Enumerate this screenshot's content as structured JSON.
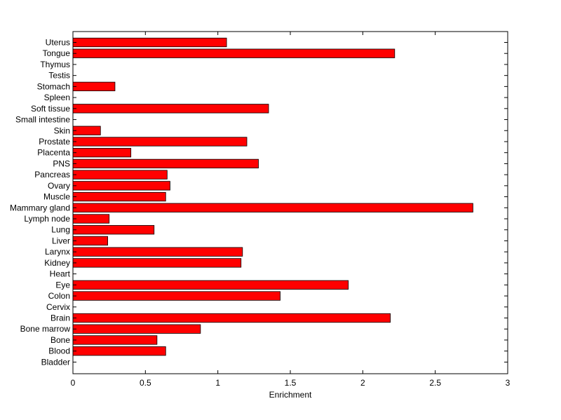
{
  "chart_data": {
    "type": "bar",
    "orientation": "horizontal",
    "title": "",
    "xlabel": "Enrichment",
    "ylabel": "",
    "xlim": [
      0,
      3
    ],
    "xticks": [
      0,
      0.5,
      1,
      1.5,
      2,
      2.5,
      3
    ],
    "xtick_labels": [
      "0",
      "0.5",
      "1",
      "1.5",
      "2",
      "2.5",
      "3"
    ],
    "grid": false,
    "bar_color": "#ff0000",
    "categories": [
      "Uterus",
      "Tongue",
      "Thymus",
      "Testis",
      "Stomach",
      "Spleen",
      "Soft tissue",
      "Small intestine",
      "Skin",
      "Prostate",
      "Placenta",
      "PNS",
      "Pancreas",
      "Ovary",
      "Muscle",
      "Mammary gland",
      "Lymph node",
      "Lung",
      "Liver",
      "Larynx",
      "Kidney",
      "Heart",
      "Eye",
      "Colon",
      "Cervix",
      "Brain",
      "Bone marrow",
      "Bone",
      "Blood",
      "Bladder"
    ],
    "values": [
      1.06,
      2.22,
      0,
      0,
      0.29,
      0,
      1.35,
      0,
      0.19,
      1.2,
      0.4,
      1.28,
      0.65,
      0.67,
      0.64,
      2.76,
      0.25,
      0.56,
      0.24,
      1.17,
      1.16,
      0,
      1.9,
      1.43,
      0,
      2.19,
      0.88,
      0.58,
      0.64,
      0
    ]
  }
}
